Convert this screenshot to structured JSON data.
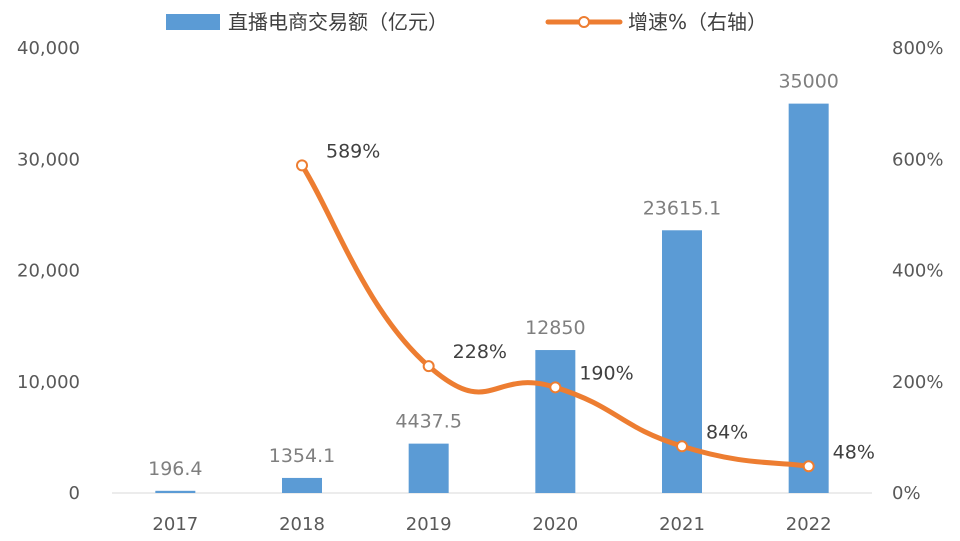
{
  "chart_data": {
    "type": "bar",
    "categories": [
      "2017",
      "2018",
      "2019",
      "2020",
      "2021",
      "2022"
    ],
    "series": [
      {
        "name": "直播电商交易额（亿元）",
        "type": "bar",
        "axis": "left",
        "color": "#5B9BD5",
        "values": [
          196.4,
          1354.1,
          4437.5,
          12850,
          23615.1,
          35000
        ],
        "labels": [
          "196.4",
          "1354.1",
          "4437.5",
          "12850",
          "23615.1",
          "35000"
        ]
      },
      {
        "name": "增速%（右轴）",
        "type": "line",
        "axis": "right",
        "color": "#ED7D31",
        "values": [
          null,
          589,
          228,
          190,
          84,
          48
        ],
        "labels": [
          "",
          "589%",
          "228%",
          "190%",
          "84%",
          "48%"
        ]
      }
    ],
    "left_axis": {
      "ylim": [
        0,
        40000
      ],
      "ticks": [
        0,
        10000,
        20000,
        30000,
        40000
      ],
      "tick_labels": [
        "0",
        "10,000",
        "20,000",
        "30,000",
        "40,000"
      ]
    },
    "right_axis": {
      "ylim": [
        0,
        800
      ],
      "ticks": [
        0,
        200,
        400,
        600,
        800
      ],
      "tick_labels": [
        "0%",
        "200%",
        "400%",
        "600%",
        "800%"
      ]
    },
    "grid": false,
    "legend": "top"
  }
}
